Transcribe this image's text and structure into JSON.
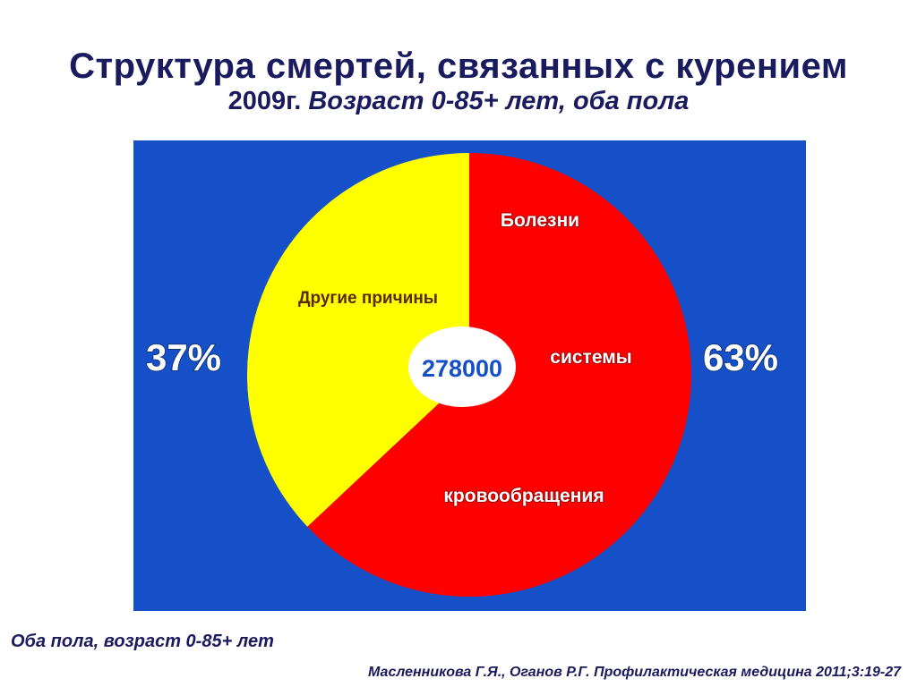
{
  "slide": {
    "title": "Структура смертей, связанных с курением",
    "subtitle_year": "2009г.",
    "subtitle_rest": "Возраст 0-85+ лет, оба пола",
    "footer_note": "Оба пола, возраст 0-85+ лет",
    "citation": "Масленникова Г.Я., Оганов Р.Г.  Профилактическая медицина  2011;3:19-27"
  },
  "colors": {
    "panel_background": "#1550c8",
    "circulatory": "#ff0000",
    "other": "#ffff00",
    "center_ellipse": "#ffffff",
    "total_text": "#1550c8",
    "other_label_text": "#5a2a00",
    "label_text": "#ffffff"
  },
  "chart_data": {
    "type": "pie",
    "title": "Структура смертей, связанных с курением",
    "total": 278000,
    "total_label": "278000",
    "slices": [
      {
        "key": "circulatory",
        "label_lines": [
          "Болезни",
          "системы",
          "кровообращения"
        ],
        "percent": 63,
        "percent_label": "63%"
      },
      {
        "key": "other",
        "label_lines": [
          "Другие причины"
        ],
        "percent": 37,
        "percent_label": "37%"
      }
    ]
  }
}
